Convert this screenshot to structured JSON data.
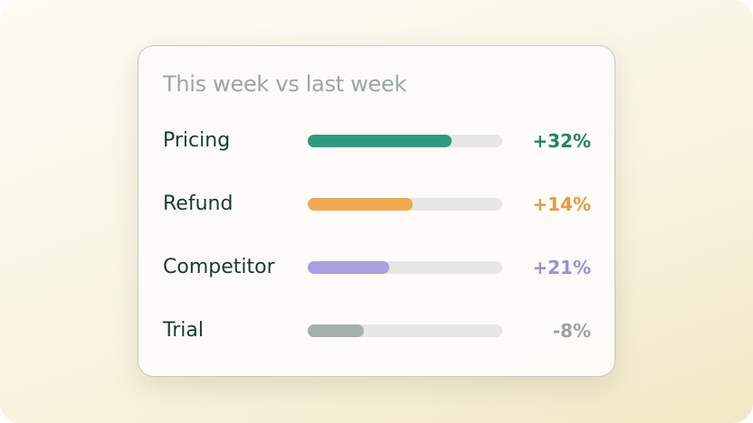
{
  "title": "This week vs last week",
  "rows": [
    {
      "label": "Pricing",
      "change": "+32%",
      "fill": 74,
      "color": "#2f9b7e",
      "text_color": "#1f8566"
    },
    {
      "label": "Refund",
      "change": "+14%",
      "fill": 54,
      "color": "#f0a853",
      "text_color": "#e99a3a"
    },
    {
      "label": "Competitor",
      "change": "+21%",
      "fill": 42,
      "color": "#aaa0e0",
      "text_color": "#9a8ed8"
    },
    {
      "label": "Trial",
      "change": "-8%",
      "fill": 29,
      "color": "#a7b0ab",
      "text_color": "#9aa39e"
    }
  ]
}
